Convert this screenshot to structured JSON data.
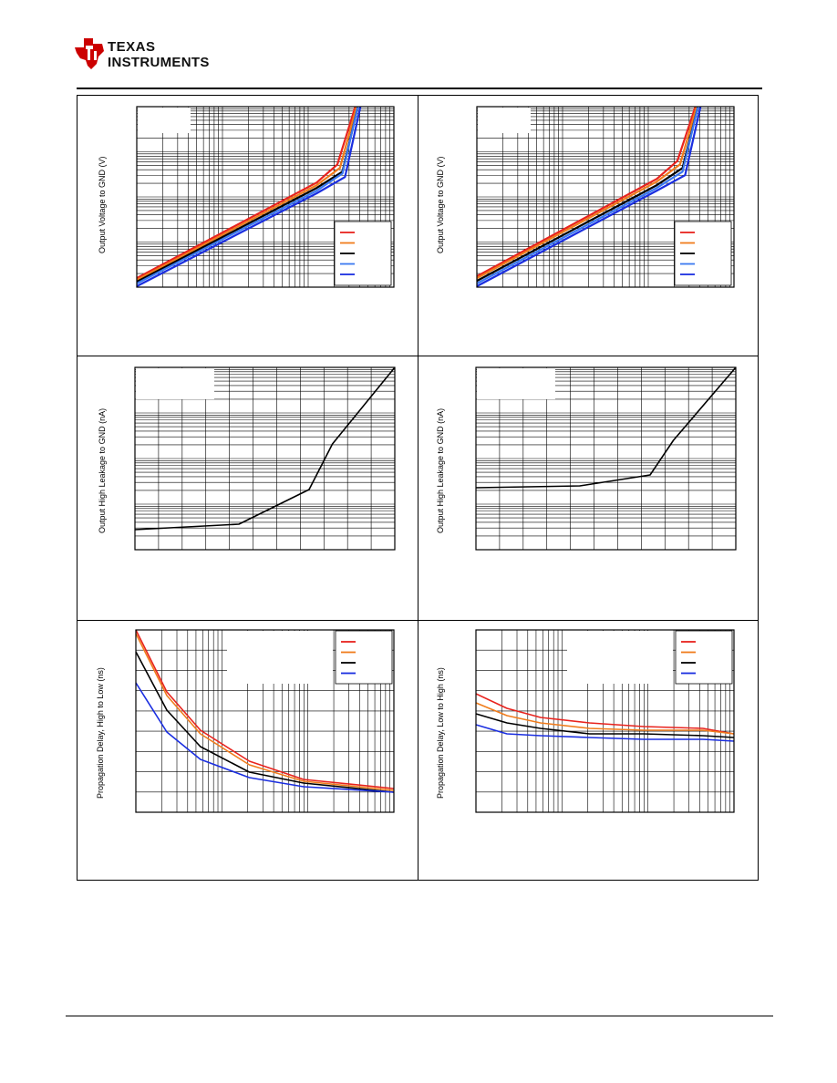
{
  "header": {
    "logo_line1": "Texas",
    "logo_line2": "Instruments",
    "brand_color": "#cc0000"
  },
  "colors": {
    "red": "#e8231e",
    "orange": "#f07c1c",
    "black": "#000000",
    "lightblue": "#3a78f0",
    "blue": "#1a2ee0"
  },
  "chart_data": [
    {
      "type": "line",
      "ylabel": "Output Voltage to GND (V)",
      "xlabel": "",
      "log_x": true,
      "log_y": true,
      "grid": true,
      "legend_placement": "bottom-right",
      "series": [
        {
          "color": "red",
          "x": [
            0.0,
            0.7,
            0.78,
            0.85
          ],
          "y": [
            0.05,
            0.58,
            0.68,
            1.0
          ]
        },
        {
          "color": "orange",
          "x": [
            0.0,
            0.7,
            0.79,
            0.855
          ],
          "y": [
            0.04,
            0.565,
            0.66,
            1.0
          ]
        },
        {
          "color": "black",
          "x": [
            0.0,
            0.7,
            0.8,
            0.86
          ],
          "y": [
            0.03,
            0.55,
            0.64,
            1.0
          ]
        },
        {
          "color": "lightblue",
          "x": [
            0.0,
            0.7,
            0.8,
            0.86
          ],
          "y": [
            0.02,
            0.535,
            0.63,
            1.0
          ]
        },
        {
          "color": "blue",
          "x": [
            0.0,
            0.7,
            0.81,
            0.87
          ],
          "y": [
            0.005,
            0.52,
            0.61,
            1.0
          ]
        }
      ]
    },
    {
      "type": "line",
      "ylabel": "Output Voltage to GND (V)",
      "xlabel": "",
      "log_x": true,
      "log_y": true,
      "grid": true,
      "legend_placement": "bottom-right",
      "series": [
        {
          "color": "red",
          "x": [
            0.0,
            0.7,
            0.78,
            0.85
          ],
          "y": [
            0.06,
            0.6,
            0.7,
            1.0
          ]
        },
        {
          "color": "orange",
          "x": [
            0.0,
            0.7,
            0.79,
            0.855
          ],
          "y": [
            0.05,
            0.585,
            0.68,
            1.0
          ]
        },
        {
          "color": "black",
          "x": [
            0.0,
            0.7,
            0.8,
            0.86
          ],
          "y": [
            0.035,
            0.565,
            0.66,
            1.0
          ]
        },
        {
          "color": "lightblue",
          "x": [
            0.0,
            0.7,
            0.8,
            0.86
          ],
          "y": [
            0.02,
            0.55,
            0.64,
            1.0
          ]
        },
        {
          "color": "blue",
          "x": [
            0.0,
            0.7,
            0.81,
            0.87
          ],
          "y": [
            0.005,
            0.535,
            0.62,
            1.0
          ]
        }
      ]
    },
    {
      "type": "line",
      "ylabel": "Output High Leakage to GND (nA)",
      "xlabel": "",
      "log_y": true,
      "grid": true,
      "series": [
        {
          "color": "black",
          "x": [
            0.0,
            0.4,
            0.67,
            0.76,
            1.0
          ],
          "y": [
            0.11,
            0.14,
            0.33,
            0.58,
            1.0
          ]
        }
      ]
    },
    {
      "type": "line",
      "ylabel": "Output High Leakage to GND (nA)",
      "xlabel": "",
      "log_y": true,
      "grid": true,
      "series": [
        {
          "color": "black",
          "x": [
            0.0,
            0.4,
            0.67,
            0.76,
            1.0
          ],
          "y": [
            0.34,
            0.35,
            0.41,
            0.6,
            1.0
          ]
        }
      ]
    },
    {
      "type": "line",
      "ylabel": "Propagation Delay, High to Low (ns)",
      "xlabel": "",
      "log_x": true,
      "grid": true,
      "legend_placement": "top-right",
      "series": [
        {
          "color": "red",
          "x": [
            0.0,
            0.12,
            0.25,
            0.44,
            0.65,
            1.0
          ],
          "y": [
            1.0,
            0.66,
            0.45,
            0.28,
            0.18,
            0.13
          ]
        },
        {
          "color": "orange",
          "x": [
            0.0,
            0.12,
            0.25,
            0.44,
            0.65,
            1.0
          ],
          "y": [
            0.98,
            0.64,
            0.43,
            0.26,
            0.17,
            0.12
          ]
        },
        {
          "color": "black",
          "x": [
            0.0,
            0.12,
            0.25,
            0.44,
            0.65,
            1.0
          ],
          "y": [
            0.88,
            0.56,
            0.36,
            0.22,
            0.16,
            0.11
          ]
        },
        {
          "color": "blue",
          "x": [
            0.0,
            0.12,
            0.25,
            0.44,
            0.65,
            1.0
          ],
          "y": [
            0.71,
            0.44,
            0.29,
            0.19,
            0.14,
            0.11
          ]
        }
      ]
    },
    {
      "type": "line",
      "ylabel": "Propagation Delay, Low to High (ns)",
      "xlabel": "",
      "log_x": true,
      "grid": true,
      "legend_placement": "top-right",
      "series": [
        {
          "color": "red",
          "x": [
            0.0,
            0.12,
            0.25,
            0.44,
            0.65,
            0.88,
            1.0
          ],
          "y": [
            0.65,
            0.57,
            0.52,
            0.49,
            0.47,
            0.46,
            0.43
          ]
        },
        {
          "color": "orange",
          "x": [
            0.0,
            0.12,
            0.25,
            0.44,
            0.65,
            0.88,
            1.0
          ],
          "y": [
            0.6,
            0.53,
            0.49,
            0.46,
            0.45,
            0.45,
            0.43
          ]
        },
        {
          "color": "black",
          "x": [
            0.0,
            0.12,
            0.25,
            0.44,
            0.65,
            0.88,
            1.0
          ],
          "y": [
            0.54,
            0.49,
            0.46,
            0.43,
            0.43,
            0.42,
            0.41
          ]
        },
        {
          "color": "blue",
          "x": [
            0.0,
            0.12,
            0.25,
            0.44,
            0.65,
            0.88,
            1.0
          ],
          "y": [
            0.48,
            0.43,
            0.42,
            0.41,
            0.4,
            0.4,
            0.39
          ]
        }
      ]
    }
  ]
}
